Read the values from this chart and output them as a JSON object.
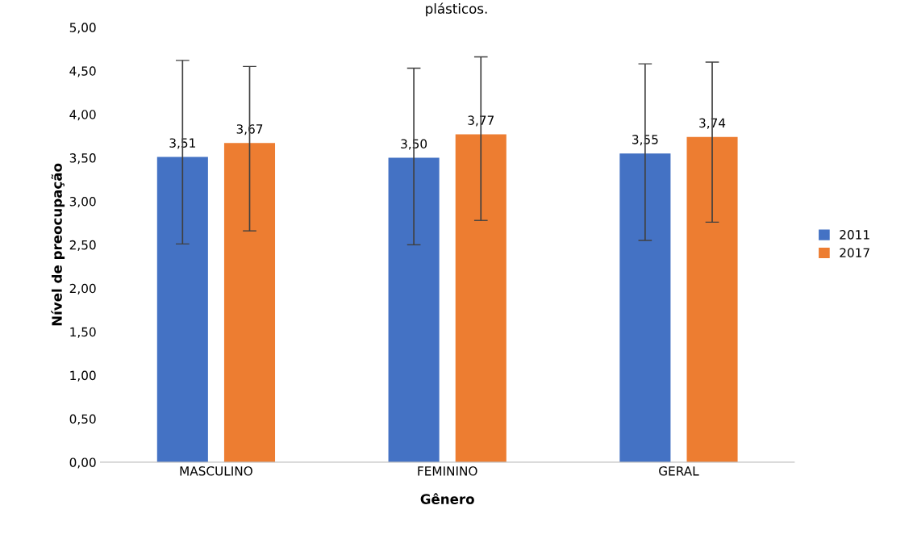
{
  "chart_data": {
    "type": "bar",
    "title": "plásticos.",
    "xlabel": "Gênero",
    "ylabel": "Nível de preocupação",
    "categories": [
      "MASCULINO",
      "FEMININO",
      "GERAL"
    ],
    "series": [
      {
        "name": "2011",
        "color": "#4472c4",
        "values": [
          3.51,
          3.5,
          3.55
        ],
        "value_labels": [
          "3,51",
          "3,50",
          "3,55"
        ],
        "errors": [
          [
            2.51,
            4.62
          ],
          [
            2.5,
            4.53
          ],
          [
            2.55,
            4.58
          ]
        ]
      },
      {
        "name": "2017",
        "color": "#ed7d31",
        "values": [
          3.67,
          3.77,
          3.74
        ],
        "value_labels": [
          "3,67",
          "3,77",
          "3,74"
        ],
        "errors": [
          [
            2.66,
            4.55
          ],
          [
            2.78,
            4.66
          ],
          [
            2.76,
            4.6
          ]
        ]
      }
    ],
    "ylim": [
      0,
      5
    ],
    "yticks": [
      {
        "value": 0,
        "label": "0,00"
      },
      {
        "value": 0.5,
        "label": "0,50"
      },
      {
        "value": 1,
        "label": "1,00"
      },
      {
        "value": 1.5,
        "label": "1,50"
      },
      {
        "value": 2,
        "label": "2,00"
      },
      {
        "value": 2.5,
        "label": "2,50"
      },
      {
        "value": 3,
        "label": "3,00"
      },
      {
        "value": 3.5,
        "label": "3,50"
      },
      {
        "value": 4,
        "label": "4,00"
      },
      {
        "value": 4.5,
        "label": "4,50"
      },
      {
        "value": 5,
        "label": "5,00"
      }
    ],
    "grid": false,
    "legend": "right"
  }
}
